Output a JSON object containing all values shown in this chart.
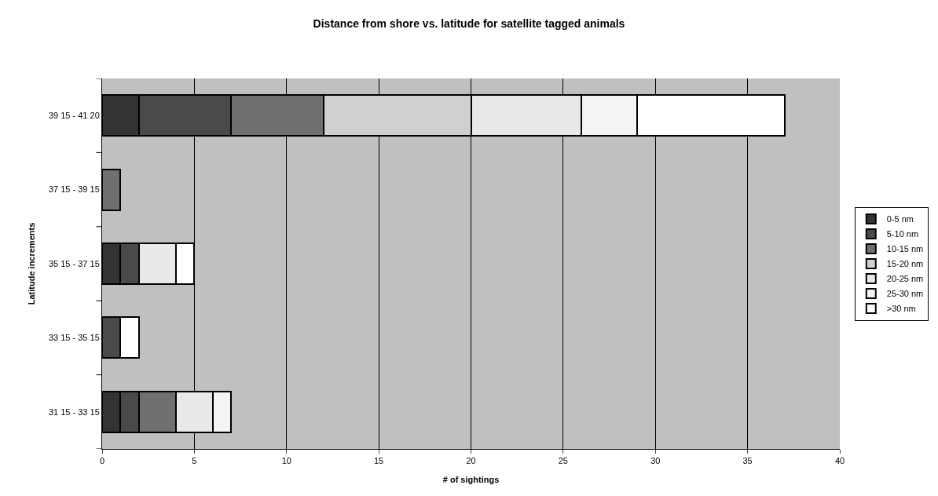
{
  "chart_data": {
    "type": "bar",
    "orientation": "horizontal",
    "stacked": true,
    "title": "Distance from shore vs. latitude for satellite tagged animals",
    "xlabel": "# of sightings",
    "ylabel": "Latitude increments",
    "categories": [
      "39 15 - 41 20",
      "37 15 - 39 15",
      "35 15 - 37 15",
      "33 15 - 35 15",
      "31 15 - 33 15"
    ],
    "series": [
      {
        "name": "0-5 nm",
        "color": "#333333",
        "values": [
          2,
          0,
          1,
          0,
          1
        ]
      },
      {
        "name": "5-10 nm",
        "color": "#4a4a4a",
        "values": [
          5,
          0,
          1,
          1,
          1
        ]
      },
      {
        "name": "10-15 nm",
        "color": "#707070",
        "values": [
          5,
          1,
          0,
          0,
          2
        ]
      },
      {
        "name": "15-20 nm",
        "color": "#d0d0d0",
        "values": [
          8,
          0,
          0,
          0,
          0
        ]
      },
      {
        "name": "20-25 nm",
        "color": "#e8e8e8",
        "values": [
          6,
          0,
          2,
          0,
          2
        ]
      },
      {
        "name": "25-30 nm",
        "color": "#f4f4f4",
        "values": [
          3,
          0,
          0,
          0,
          1
        ]
      },
      {
        "name": ">30 nm",
        "color": "#ffffff",
        "values": [
          8,
          0,
          1,
          1,
          0
        ]
      }
    ],
    "xlim": [
      0,
      40
    ],
    "xticks": [
      0,
      5,
      10,
      15,
      20,
      25,
      30,
      35,
      40
    ],
    "grid": "x",
    "legend": "right"
  }
}
